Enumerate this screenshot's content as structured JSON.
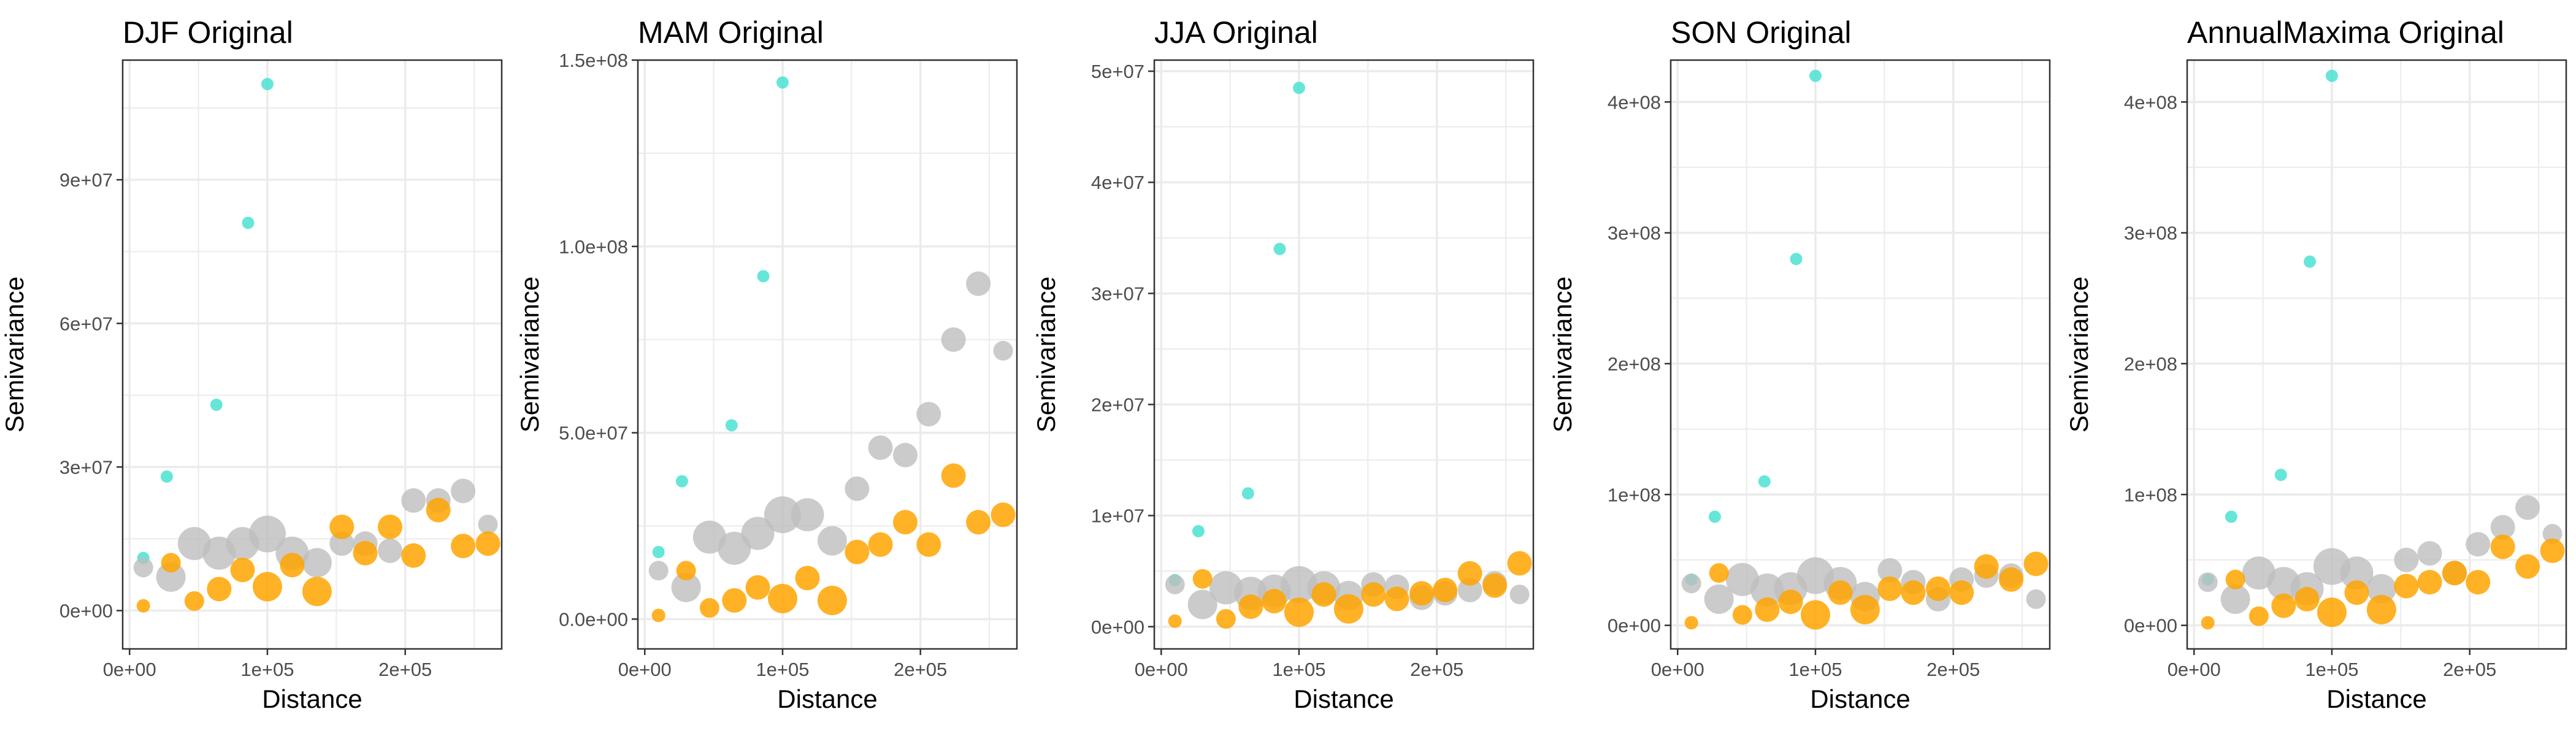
{
  "colors": {
    "background": "#ffffff",
    "grid": "#ebebeb",
    "panel_border": "#333333",
    "tick_text": "#4d4d4d",
    "cyan": "#40e0d0",
    "grey": "#bebebe",
    "orange": "#ffa500"
  },
  "chart_data": [
    {
      "type": "scatter",
      "title": "DJF Original",
      "xlabel": "Distance",
      "ylabel": "Semivariance",
      "xlim": [
        -5000,
        270000
      ],
      "ylim": [
        -8000000,
        115000000
      ],
      "x_ticks": [
        0,
        100000,
        200000
      ],
      "x_tick_labels": [
        "0e+00",
        "1e+05",
        "2e+05"
      ],
      "y_ticks": [
        0,
        30000000,
        60000000,
        90000000
      ],
      "y_tick_labels": [
        "0e+00",
        "3e+07",
        "6e+07",
        "9e+07"
      ],
      "grid": true,
      "series": [
        {
          "color": "cyan",
          "size": "small",
          "x": [
            10000,
            27000,
            63000,
            86000,
            100000
          ],
          "y": [
            11000000,
            28000000,
            43000000,
            81000000,
            110000000
          ]
        },
        {
          "color": "grey",
          "size": "varied",
          "x": [
            10000,
            30000,
            47000,
            65000,
            82000,
            100000,
            118000,
            136000,
            154000,
            171000,
            189000,
            206000,
            224000,
            242000,
            260000
          ],
          "y": [
            9000000,
            7000000,
            14000000,
            12000000,
            14000000,
            16000000,
            12000000,
            10000000,
            14000000,
            14000000,
            12500000,
            23000000,
            23000000,
            25000000,
            18000000
          ],
          "sizes": [
            2,
            4,
            5,
            5,
            5,
            6,
            5,
            4,
            3,
            3,
            3,
            3,
            3,
            3,
            2
          ]
        },
        {
          "color": "orange",
          "size": "varied",
          "x": [
            10000,
            30000,
            47000,
            65000,
            82000,
            100000,
            118000,
            136000,
            154000,
            171000,
            189000,
            206000,
            224000,
            242000,
            260000
          ],
          "y": [
            1000000,
            10000000,
            2000000,
            4500000,
            8500000,
            5000000,
            9500000,
            4000000,
            17500000,
            12000000,
            17500000,
            11500000,
            21000000,
            13500000,
            14000000
          ],
          "sizes": [
            1,
            2,
            2,
            3,
            3,
            4,
            3,
            4,
            3,
            3,
            3,
            3,
            3,
            3,
            3
          ]
        }
      ]
    },
    {
      "type": "scatter",
      "title": "MAM Original",
      "xlabel": "Distance",
      "ylabel": "Semivariance",
      "xlim": [
        -5000,
        270000
      ],
      "ylim": [
        -8000000,
        150000000
      ],
      "x_ticks": [
        0,
        100000,
        200000
      ],
      "x_tick_labels": [
        "0e+00",
        "1e+05",
        "2e+05"
      ],
      "y_ticks": [
        0,
        50000000,
        100000000,
        150000000
      ],
      "y_tick_labels": [
        "0.0e+00",
        "5.0e+07",
        "1.0e+08",
        "1.5e+08"
      ],
      "grid": true,
      "series": [
        {
          "color": "cyan",
          "size": "small",
          "x": [
            10000,
            27000,
            63000,
            86000,
            100000
          ],
          "y": [
            18000000,
            37000000,
            52000000,
            92000000,
            144000000
          ]
        },
        {
          "color": "grey",
          "size": "varied",
          "x": [
            10000,
            30000,
            47000,
            65000,
            82000,
            100000,
            118000,
            136000,
            154000,
            171000,
            189000,
            206000,
            224000,
            242000,
            260000
          ],
          "y": [
            13000000,
            8500000,
            22000000,
            19000000,
            23000000,
            28000000,
            28000000,
            21000000,
            35000000,
            46000000,
            44000000,
            55000000,
            75000000,
            90000000,
            72000000
          ],
          "sizes": [
            2,
            4,
            5,
            5,
            5,
            6,
            5,
            4,
            3,
            3,
            3,
            3,
            3,
            3,
            2
          ]
        },
        {
          "color": "orange",
          "size": "varied",
          "x": [
            10000,
            30000,
            47000,
            65000,
            82000,
            100000,
            118000,
            136000,
            154000,
            171000,
            189000,
            206000,
            224000,
            242000,
            260000
          ],
          "y": [
            1000000,
            13000000,
            3000000,
            5000000,
            8500000,
            5500000,
            11000000,
            5000000,
            18000000,
            20000000,
            26000000,
            20000000,
            38500000,
            26000000,
            28000000
          ],
          "sizes": [
            1,
            2,
            2,
            3,
            3,
            4,
            3,
            4,
            3,
            3,
            3,
            3,
            3,
            3,
            3
          ]
        }
      ]
    },
    {
      "type": "scatter",
      "title": "JJA Original",
      "xlabel": "Distance",
      "ylabel": "Semivariance",
      "xlim": [
        -5000,
        270000
      ],
      "ylim": [
        -2000000,
        51000000
      ],
      "x_ticks": [
        0,
        100000,
        200000
      ],
      "x_tick_labels": [
        "0e+00",
        "1e+05",
        "2e+05"
      ],
      "y_ticks": [
        0,
        10000000,
        20000000,
        30000000,
        40000000,
        50000000
      ],
      "y_tick_labels": [
        "0e+00",
        "1e+07",
        "2e+07",
        "3e+07",
        "4e+07",
        "5e+07"
      ],
      "grid": true,
      "series": [
        {
          "color": "cyan",
          "size": "small",
          "x": [
            10000,
            27000,
            63000,
            86000,
            100000
          ],
          "y": [
            4200000,
            8600000,
            12000000,
            34000000,
            48500000
          ]
        },
        {
          "color": "grey",
          "size": "varied",
          "x": [
            10000,
            30000,
            47000,
            65000,
            82000,
            100000,
            118000,
            136000,
            154000,
            171000,
            189000,
            206000,
            224000,
            242000,
            260000
          ],
          "y": [
            3800000,
            2000000,
            3500000,
            3000000,
            3200000,
            3800000,
            3500000,
            2800000,
            3800000,
            3600000,
            2600000,
            3000000,
            3300000,
            3900000,
            2900000
          ],
          "sizes": [
            2,
            4,
            5,
            5,
            5,
            6,
            5,
            4,
            3,
            3,
            3,
            3,
            3,
            3,
            2
          ]
        },
        {
          "color": "orange",
          "size": "varied",
          "x": [
            10000,
            30000,
            47000,
            65000,
            82000,
            100000,
            118000,
            136000,
            154000,
            171000,
            189000,
            206000,
            224000,
            242000,
            260000
          ],
          "y": [
            500000,
            4300000,
            700000,
            1800000,
            2300000,
            1300000,
            2900000,
            1600000,
            2900000,
            2500000,
            3000000,
            3300000,
            4800000,
            3700000,
            5700000
          ],
          "sizes": [
            1,
            2,
            2,
            3,
            3,
            4,
            3,
            4,
            3,
            3,
            3,
            3,
            3,
            3,
            3
          ]
        }
      ]
    },
    {
      "type": "scatter",
      "title": "SON Original",
      "xlabel": "Distance",
      "ylabel": "Semivariance",
      "xlim": [
        -5000,
        270000
      ],
      "ylim": [
        -18000000,
        432000000
      ],
      "x_ticks": [
        0,
        100000,
        200000
      ],
      "x_tick_labels": [
        "0e+00",
        "1e+05",
        "2e+05"
      ],
      "y_ticks": [
        0,
        100000000,
        200000000,
        300000000,
        400000000
      ],
      "y_tick_labels": [
        "0e+00",
        "1e+08",
        "2e+08",
        "3e+08",
        "4e+08"
      ],
      "grid": true,
      "series": [
        {
          "color": "cyan",
          "size": "small",
          "x": [
            10000,
            27000,
            63000,
            86000,
            100000
          ],
          "y": [
            35000000,
            83000000,
            110000000,
            280000000,
            420000000
          ]
        },
        {
          "color": "grey",
          "size": "varied",
          "x": [
            10000,
            30000,
            47000,
            65000,
            82000,
            100000,
            118000,
            136000,
            154000,
            171000,
            189000,
            206000,
            224000,
            242000,
            260000
          ],
          "y": [
            32000000,
            20000000,
            35000000,
            27000000,
            28000000,
            38000000,
            32000000,
            22000000,
            42000000,
            33000000,
            20000000,
            35000000,
            38000000,
            38000000,
            20000000
          ],
          "sizes": [
            2,
            4,
            5,
            5,
            5,
            6,
            5,
            4,
            3,
            3,
            3,
            3,
            3,
            3,
            2
          ]
        },
        {
          "color": "orange",
          "size": "varied",
          "x": [
            10000,
            30000,
            47000,
            65000,
            82000,
            100000,
            118000,
            136000,
            154000,
            171000,
            189000,
            206000,
            224000,
            242000,
            260000
          ],
          "y": [
            2000000,
            40000000,
            8000000,
            12000000,
            18000000,
            8000000,
            25000000,
            12000000,
            28000000,
            25000000,
            28000000,
            25000000,
            45000000,
            35000000,
            47000000
          ],
          "sizes": [
            1,
            2,
            2,
            3,
            3,
            4,
            3,
            4,
            3,
            3,
            3,
            3,
            3,
            3,
            3
          ]
        }
      ]
    },
    {
      "type": "scatter",
      "title": "AnnualMaxima Original",
      "xlabel": "Distance",
      "ylabel": "Semivariance",
      "xlim": [
        -5000,
        270000
      ],
      "ylim": [
        -18000000,
        432000000
      ],
      "x_ticks": [
        0,
        100000,
        200000
      ],
      "x_tick_labels": [
        "0e+00",
        "1e+05",
        "2e+05"
      ],
      "y_ticks": [
        0,
        100000000,
        200000000,
        300000000,
        400000000
      ],
      "y_tick_labels": [
        "0e+00",
        "1e+08",
        "2e+08",
        "3e+08",
        "4e+08"
      ],
      "grid": true,
      "series": [
        {
          "color": "cyan",
          "size": "small",
          "x": [
            10000,
            27000,
            63000,
            84000,
            100000
          ],
          "y": [
            35000000,
            83000000,
            115000000,
            278000000,
            420000000
          ]
        },
        {
          "color": "grey",
          "size": "varied",
          "x": [
            10000,
            30000,
            47000,
            65000,
            82000,
            100000,
            118000,
            136000,
            154000,
            171000,
            189000,
            206000,
            224000,
            242000,
            260000
          ],
          "y": [
            33000000,
            20000000,
            40000000,
            32000000,
            28000000,
            45000000,
            40000000,
            28000000,
            50000000,
            55000000,
            40000000,
            62000000,
            75000000,
            90000000,
            70000000
          ],
          "sizes": [
            2,
            4,
            5,
            5,
            5,
            6,
            5,
            4,
            3,
            3,
            3,
            3,
            3,
            3,
            2
          ]
        },
        {
          "color": "orange",
          "size": "varied",
          "x": [
            10000,
            30000,
            47000,
            65000,
            82000,
            100000,
            118000,
            136000,
            154000,
            171000,
            189000,
            206000,
            224000,
            242000,
            260000
          ],
          "y": [
            2000000,
            35000000,
            7000000,
            15000000,
            20000000,
            10000000,
            25000000,
            12000000,
            30000000,
            33000000,
            40000000,
            33000000,
            60000000,
            45000000,
            57000000
          ],
          "sizes": [
            1,
            2,
            2,
            3,
            3,
            4,
            3,
            4,
            3,
            3,
            3,
            3,
            3,
            3,
            3
          ]
        }
      ]
    }
  ]
}
